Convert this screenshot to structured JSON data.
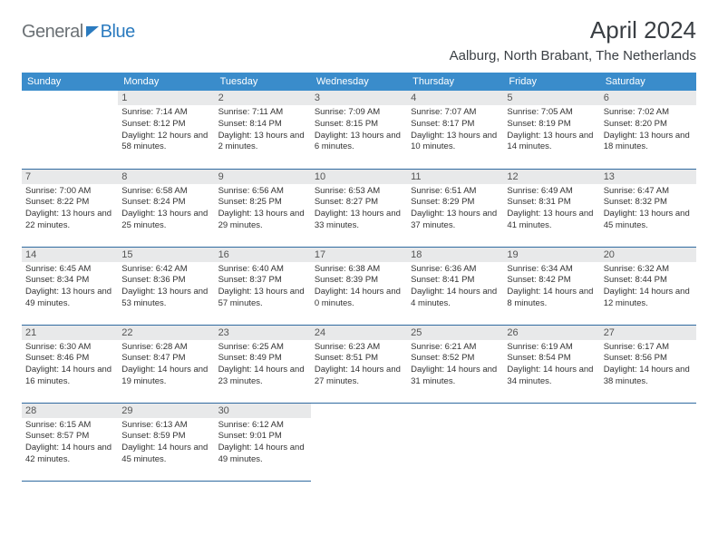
{
  "logo": {
    "general": "General",
    "blue": "Blue"
  },
  "title": "April 2024",
  "location": "Aalburg, North Brabant, The Netherlands",
  "colors": {
    "header_bg": "#3a8ccb",
    "header_text": "#ffffff",
    "daynum_bg": "#e8e9ea",
    "rule": "#2f6aa0",
    "logo_gray": "#6b7175",
    "logo_blue": "#2b7bbf"
  },
  "day_headers": [
    "Sunday",
    "Monday",
    "Tuesday",
    "Wednesday",
    "Thursday",
    "Friday",
    "Saturday"
  ],
  "weeks": [
    [
      null,
      {
        "n": "1",
        "sunrise": "7:14 AM",
        "sunset": "8:12 PM",
        "daylight": "12 hours and 58 minutes."
      },
      {
        "n": "2",
        "sunrise": "7:11 AM",
        "sunset": "8:14 PM",
        "daylight": "13 hours and 2 minutes."
      },
      {
        "n": "3",
        "sunrise": "7:09 AM",
        "sunset": "8:15 PM",
        "daylight": "13 hours and 6 minutes."
      },
      {
        "n": "4",
        "sunrise": "7:07 AM",
        "sunset": "8:17 PM",
        "daylight": "13 hours and 10 minutes."
      },
      {
        "n": "5",
        "sunrise": "7:05 AM",
        "sunset": "8:19 PM",
        "daylight": "13 hours and 14 minutes."
      },
      {
        "n": "6",
        "sunrise": "7:02 AM",
        "sunset": "8:20 PM",
        "daylight": "13 hours and 18 minutes."
      }
    ],
    [
      {
        "n": "7",
        "sunrise": "7:00 AM",
        "sunset": "8:22 PM",
        "daylight": "13 hours and 22 minutes."
      },
      {
        "n": "8",
        "sunrise": "6:58 AM",
        "sunset": "8:24 PM",
        "daylight": "13 hours and 25 minutes."
      },
      {
        "n": "9",
        "sunrise": "6:56 AM",
        "sunset": "8:25 PM",
        "daylight": "13 hours and 29 minutes."
      },
      {
        "n": "10",
        "sunrise": "6:53 AM",
        "sunset": "8:27 PM",
        "daylight": "13 hours and 33 minutes."
      },
      {
        "n": "11",
        "sunrise": "6:51 AM",
        "sunset": "8:29 PM",
        "daylight": "13 hours and 37 minutes."
      },
      {
        "n": "12",
        "sunrise": "6:49 AM",
        "sunset": "8:31 PM",
        "daylight": "13 hours and 41 minutes."
      },
      {
        "n": "13",
        "sunrise": "6:47 AM",
        "sunset": "8:32 PM",
        "daylight": "13 hours and 45 minutes."
      }
    ],
    [
      {
        "n": "14",
        "sunrise": "6:45 AM",
        "sunset": "8:34 PM",
        "daylight": "13 hours and 49 minutes."
      },
      {
        "n": "15",
        "sunrise": "6:42 AM",
        "sunset": "8:36 PM",
        "daylight": "13 hours and 53 minutes."
      },
      {
        "n": "16",
        "sunrise": "6:40 AM",
        "sunset": "8:37 PM",
        "daylight": "13 hours and 57 minutes."
      },
      {
        "n": "17",
        "sunrise": "6:38 AM",
        "sunset": "8:39 PM",
        "daylight": "14 hours and 0 minutes."
      },
      {
        "n": "18",
        "sunrise": "6:36 AM",
        "sunset": "8:41 PM",
        "daylight": "14 hours and 4 minutes."
      },
      {
        "n": "19",
        "sunrise": "6:34 AM",
        "sunset": "8:42 PM",
        "daylight": "14 hours and 8 minutes."
      },
      {
        "n": "20",
        "sunrise": "6:32 AM",
        "sunset": "8:44 PM",
        "daylight": "14 hours and 12 minutes."
      }
    ],
    [
      {
        "n": "21",
        "sunrise": "6:30 AM",
        "sunset": "8:46 PM",
        "daylight": "14 hours and 16 minutes."
      },
      {
        "n": "22",
        "sunrise": "6:28 AM",
        "sunset": "8:47 PM",
        "daylight": "14 hours and 19 minutes."
      },
      {
        "n": "23",
        "sunrise": "6:25 AM",
        "sunset": "8:49 PM",
        "daylight": "14 hours and 23 minutes."
      },
      {
        "n": "24",
        "sunrise": "6:23 AM",
        "sunset": "8:51 PM",
        "daylight": "14 hours and 27 minutes."
      },
      {
        "n": "25",
        "sunrise": "6:21 AM",
        "sunset": "8:52 PM",
        "daylight": "14 hours and 31 minutes."
      },
      {
        "n": "26",
        "sunrise": "6:19 AM",
        "sunset": "8:54 PM",
        "daylight": "14 hours and 34 minutes."
      },
      {
        "n": "27",
        "sunrise": "6:17 AM",
        "sunset": "8:56 PM",
        "daylight": "14 hours and 38 minutes."
      }
    ],
    [
      {
        "n": "28",
        "sunrise": "6:15 AM",
        "sunset": "8:57 PM",
        "daylight": "14 hours and 42 minutes."
      },
      {
        "n": "29",
        "sunrise": "6:13 AM",
        "sunset": "8:59 PM",
        "daylight": "14 hours and 45 minutes."
      },
      {
        "n": "30",
        "sunrise": "6:12 AM",
        "sunset": "9:01 PM",
        "daylight": "14 hours and 49 minutes."
      },
      null,
      null,
      null,
      null
    ]
  ],
  "labels": {
    "sunrise": "Sunrise: ",
    "sunset": "Sunset: ",
    "daylight": "Daylight: "
  }
}
